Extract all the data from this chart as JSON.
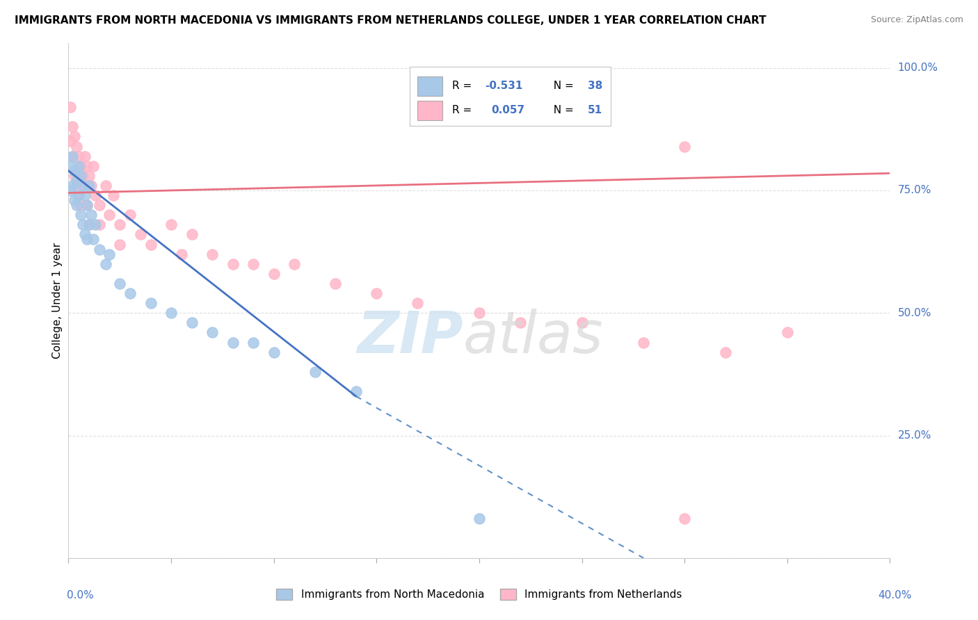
{
  "title": "IMMIGRANTS FROM NORTH MACEDONIA VS IMMIGRANTS FROM NETHERLANDS COLLEGE, UNDER 1 YEAR CORRELATION CHART",
  "source": "Source: ZipAtlas.com",
  "ylabel": "College, Under 1 year",
  "xlim": [
    0.0,
    0.4
  ],
  "ylim": [
    0.0,
    1.05
  ],
  "yticks": [
    0.0,
    0.25,
    0.5,
    0.75,
    1.0
  ],
  "ytick_labels": [
    "",
    "25.0%",
    "50.0%",
    "75.0%",
    "100.0%"
  ],
  "blue_color": "#a8c8e8",
  "pink_color": "#ffb6c8",
  "blue_line_color": "#4472c4",
  "pink_line_color": "#e87080",
  "dashed_color": "#6090c8",
  "trend_blue_x0": 0.0,
  "trend_blue_y0": 0.79,
  "trend_blue_x1": 0.14,
  "trend_blue_y1": 0.33,
  "trend_blue_dash_x1": 0.28,
  "trend_blue_dash_y1": 0.0,
  "trend_pink_x0": 0.0,
  "trend_pink_y0": 0.745,
  "trend_pink_x1": 0.4,
  "trend_pink_y1": 0.785,
  "scatter_blue_x": [
    0.001,
    0.001,
    0.002,
    0.002,
    0.003,
    0.003,
    0.004,
    0.004,
    0.005,
    0.005,
    0.006,
    0.006,
    0.007,
    0.007,
    0.008,
    0.008,
    0.009,
    0.009,
    0.01,
    0.01,
    0.011,
    0.012,
    0.013,
    0.015,
    0.018,
    0.02,
    0.025,
    0.03,
    0.04,
    0.05,
    0.06,
    0.07,
    0.08,
    0.09,
    0.1,
    0.12,
    0.14,
    0.2
  ],
  "scatter_blue_y": [
    0.8,
    0.75,
    0.82,
    0.76,
    0.79,
    0.73,
    0.77,
    0.72,
    0.8,
    0.74,
    0.78,
    0.7,
    0.76,
    0.68,
    0.74,
    0.66,
    0.72,
    0.65,
    0.76,
    0.68,
    0.7,
    0.65,
    0.68,
    0.63,
    0.6,
    0.62,
    0.56,
    0.54,
    0.52,
    0.5,
    0.48,
    0.46,
    0.44,
    0.44,
    0.42,
    0.38,
    0.34,
    0.08
  ],
  "scatter_pink_x": [
    0.001,
    0.001,
    0.002,
    0.002,
    0.003,
    0.003,
    0.004,
    0.004,
    0.005,
    0.005,
    0.006,
    0.006,
    0.007,
    0.008,
    0.008,
    0.009,
    0.009,
    0.01,
    0.01,
    0.011,
    0.012,
    0.013,
    0.015,
    0.015,
    0.018,
    0.02,
    0.022,
    0.025,
    0.025,
    0.03,
    0.035,
    0.04,
    0.05,
    0.055,
    0.06,
    0.07,
    0.08,
    0.09,
    0.1,
    0.11,
    0.13,
    0.15,
    0.17,
    0.2,
    0.22,
    0.25,
    0.28,
    0.3,
    0.32,
    0.35,
    0.3
  ],
  "scatter_pink_y": [
    0.92,
    0.85,
    0.88,
    0.82,
    0.86,
    0.78,
    0.84,
    0.76,
    0.82,
    0.74,
    0.8,
    0.72,
    0.78,
    0.82,
    0.76,
    0.8,
    0.72,
    0.78,
    0.68,
    0.76,
    0.8,
    0.74,
    0.72,
    0.68,
    0.76,
    0.7,
    0.74,
    0.68,
    0.64,
    0.7,
    0.66,
    0.64,
    0.68,
    0.62,
    0.66,
    0.62,
    0.6,
    0.6,
    0.58,
    0.6,
    0.56,
    0.54,
    0.52,
    0.5,
    0.48,
    0.48,
    0.44,
    0.84,
    0.42,
    0.46,
    0.08
  ],
  "legend_r1_label": "R = ",
  "legend_r1_val": "-0.531",
  "legend_n1_label": "N = ",
  "legend_n1_val": "38",
  "legend_r2_label": "R =  ",
  "legend_r2_val": "0.057",
  "legend_n2_label": "N = ",
  "legend_n2_val": "51",
  "watermark_zip": "ZIP",
  "watermark_atlas": "atlas",
  "bg_color": "#ffffff",
  "grid_color": "#e0e0e0",
  "axis_label_color": "#4472c4",
  "title_fontsize": 11,
  "label_fontsize": 11,
  "source_text": "Source: ZipAtlas.com"
}
